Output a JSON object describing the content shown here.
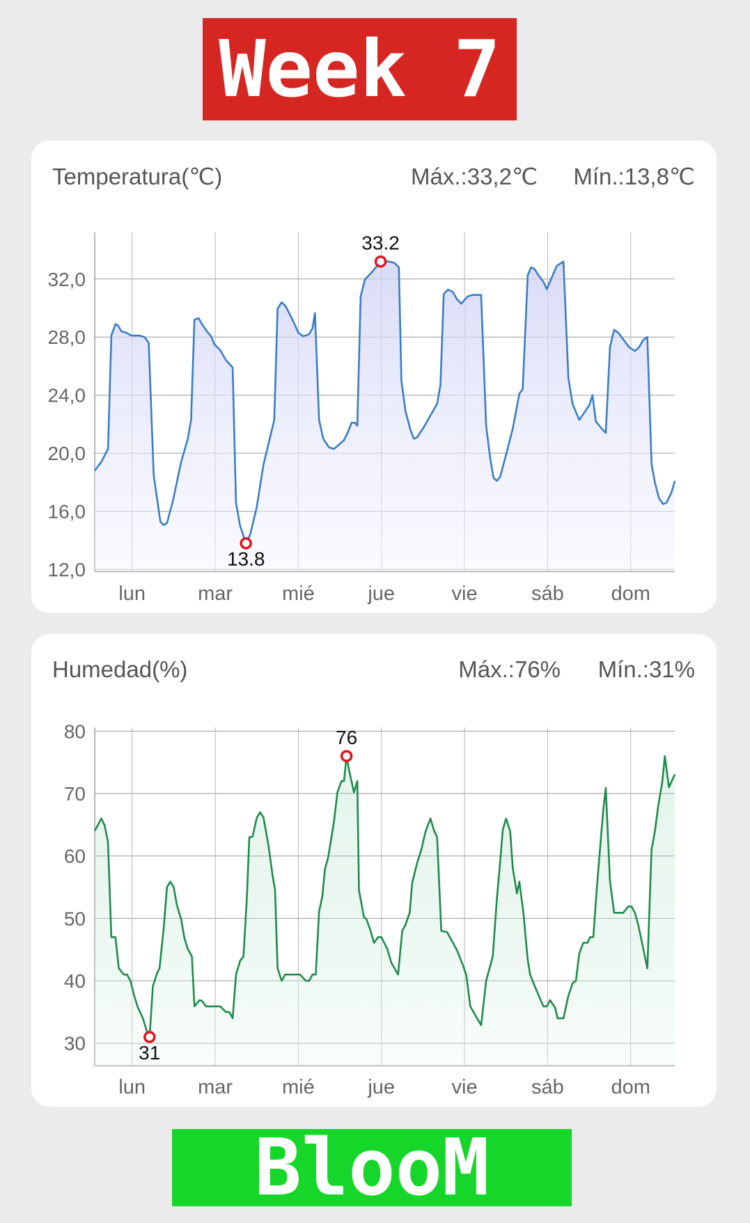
{
  "header": {
    "title": "Week 7"
  },
  "footer": {
    "brand": "BlooM"
  },
  "temperature": {
    "title": "Temperatura(℃)",
    "max_label": "Máx.:33,2℃",
    "min_label": "Mín.:13,8℃"
  },
  "humidity": {
    "title": "Humedad(%)",
    "max_label": "Máx.:76%",
    "min_label": "Mín.:31%"
  },
  "colors": {
    "header_bg": "#d62621",
    "footer_bg": "#16d62a",
    "temp_line": "#3a7dc4",
    "hum_line": "#1f8a4d",
    "marker": "#e0141c"
  },
  "chart_data": [
    {
      "type": "area",
      "title": "Temperatura(℃)",
      "xlabel": "",
      "ylabel": "",
      "x_unit": "days",
      "xlim": [
        -0.45,
        6.53
      ],
      "ylim": [
        11.86,
        35.2
      ],
      "yticks": [
        12,
        16,
        20,
        24,
        28,
        32
      ],
      "ytick_labels": [
        "12,0",
        "16,0",
        "20,0",
        "24,0",
        "28,0",
        "32,0"
      ],
      "xticks": [
        0,
        1,
        2,
        3,
        4,
        5,
        6
      ],
      "xtick_labels": [
        "lun",
        "mar",
        "mié",
        "jue",
        "vie",
        "sáb",
        "dom"
      ],
      "grid": true,
      "annotations": [
        {
          "x": 2.99,
          "y": 33.2,
          "label": "33.2",
          "kind": "max"
        },
        {
          "x": 1.37,
          "y": 13.8,
          "label": "13.8",
          "kind": "min"
        }
      ],
      "x": [
        -0.45,
        -0.37,
        -0.29,
        -0.25,
        -0.2,
        -0.17,
        -0.13,
        -0.07,
        -0.01,
        0.09,
        0.15,
        0.2,
        0.26,
        0.3,
        0.34,
        0.38,
        0.42,
        0.49,
        0.59,
        0.67,
        0.71,
        0.75,
        0.8,
        0.84,
        0.9,
        0.95,
        0.99,
        1.06,
        1.13,
        1.21,
        1.25,
        1.3,
        1.37,
        1.42,
        1.5,
        1.58,
        1.66,
        1.71,
        1.75,
        1.8,
        1.85,
        1.93,
        2.0,
        2.06,
        2.13,
        2.17,
        2.2,
        2.25,
        2.3,
        2.37,
        2.43,
        2.49,
        2.55,
        2.6,
        2.64,
        2.68,
        2.71,
        2.75,
        2.8,
        2.89,
        2.99,
        3.09,
        3.16,
        3.21,
        3.24,
        3.29,
        3.35,
        3.39,
        3.43,
        3.51,
        3.59,
        3.67,
        3.71,
        3.75,
        3.8,
        3.86,
        3.91,
        3.96,
        4.04,
        4.1,
        4.2,
        4.26,
        4.31,
        4.35,
        4.39,
        4.43,
        4.5,
        4.58,
        4.66,
        4.7,
        4.76,
        4.8,
        4.84,
        4.89,
        4.95,
        4.99,
        5.06,
        5.11,
        5.19,
        5.25,
        5.3,
        5.38,
        5.43,
        5.5,
        5.54,
        5.58,
        5.65,
        5.7,
        5.75,
        5.8,
        5.85,
        5.91,
        5.98,
        6.05,
        6.1,
        6.15,
        6.2,
        6.25,
        6.29,
        6.34,
        6.39,
        6.43,
        6.49,
        6.53
      ],
      "y": [
        18.8,
        19.4,
        20.3,
        28.1,
        28.9,
        28.8,
        28.4,
        28.3,
        28.1,
        28.1,
        28.0,
        27.6,
        18.5,
        16.9,
        15.3,
        15.05,
        15.2,
        16.7,
        19.4,
        21.0,
        22.3,
        29.2,
        29.3,
        28.9,
        28.4,
        28.05,
        27.5,
        27.1,
        26.4,
        25.9,
        16.6,
        15.0,
        13.8,
        14.4,
        16.3,
        19.2,
        21.1,
        22.3,
        29.96,
        30.4,
        30.1,
        29.2,
        28.3,
        28.05,
        28.2,
        28.6,
        29.65,
        22.3,
        21.0,
        20.4,
        20.3,
        20.6,
        20.9,
        21.5,
        22.1,
        22.1,
        21.9,
        30.8,
        31.95,
        32.5,
        33.2,
        33.2,
        33.1,
        32.8,
        25.0,
        22.9,
        21.6,
        21.0,
        21.1,
        21.8,
        22.6,
        23.4,
        24.7,
        30.96,
        31.27,
        31.1,
        30.6,
        30.3,
        30.8,
        30.9,
        30.9,
        21.9,
        19.6,
        18.3,
        18.1,
        18.4,
        19.9,
        21.7,
        24.1,
        24.4,
        32.25,
        32.8,
        32.7,
        32.25,
        31.8,
        31.3,
        32.25,
        32.9,
        33.2,
        25.2,
        23.4,
        22.3,
        22.7,
        23.3,
        24.0,
        22.2,
        21.7,
        21.4,
        27.3,
        28.5,
        28.3,
        27.85,
        27.3,
        27.05,
        27.3,
        27.8,
        28.0,
        19.3,
        18.0,
        16.9,
        16.5,
        16.6,
        17.3,
        18.1
      ]
    },
    {
      "type": "area",
      "title": "Humedad(%)",
      "xlabel": "",
      "ylabel": "",
      "x_unit": "days",
      "xlim": [
        -0.45,
        6.53
      ],
      "ylim": [
        26.4,
        80.6
      ],
      "yticks": [
        30,
        40,
        50,
        60,
        70,
        80
      ],
      "ytick_labels": [
        "30",
        "40",
        "50",
        "60",
        "70",
        "80"
      ],
      "xticks": [
        0,
        1,
        2,
        3,
        4,
        5,
        6
      ],
      "xtick_labels": [
        "lun",
        "mar",
        "mié",
        "jue",
        "vie",
        "sáb",
        "dom"
      ],
      "grid": true,
      "annotations": [
        {
          "x": 2.58,
          "y": 76,
          "label": "76",
          "kind": "max"
        },
        {
          "x": 0.21,
          "y": 31,
          "label": "31",
          "kind": "min"
        }
      ],
      "x": [
        -0.45,
        -0.37,
        -0.33,
        -0.29,
        -0.25,
        -0.2,
        -0.16,
        -0.1,
        -0.06,
        -0.02,
        0.03,
        0.07,
        0.13,
        0.18,
        0.21,
        0.25,
        0.3,
        0.33,
        0.38,
        0.42,
        0.46,
        0.5,
        0.54,
        0.59,
        0.63,
        0.67,
        0.72,
        0.75,
        0.81,
        0.84,
        0.89,
        1.06,
        1.13,
        1.17,
        1.21,
        1.25,
        1.3,
        1.34,
        1.38,
        1.41,
        1.45,
        1.5,
        1.54,
        1.58,
        1.64,
        1.69,
        1.72,
        1.75,
        1.8,
        1.84,
        2.02,
        2.09,
        2.13,
        2.17,
        2.21,
        2.25,
        2.29,
        2.32,
        2.36,
        2.43,
        2.47,
        2.52,
        2.55,
        2.58,
        2.61,
        2.67,
        2.71,
        2.73,
        2.79,
        2.82,
        2.87,
        2.91,
        2.96,
        3.0,
        3.07,
        3.12,
        3.2,
        3.25,
        3.29,
        3.34,
        3.37,
        3.43,
        3.48,
        3.53,
        3.59,
        3.63,
        3.67,
        3.72,
        3.79,
        3.84,
        3.91,
        3.98,
        4.02,
        4.07,
        4.15,
        4.2,
        4.26,
        4.34,
        4.39,
        4.43,
        4.46,
        4.5,
        4.55,
        4.58,
        4.63,
        4.66,
        4.71,
        4.76,
        4.79,
        4.84,
        4.91,
        4.95,
        4.99,
        5.03,
        5.09,
        5.12,
        5.19,
        5.25,
        5.3,
        5.34,
        5.38,
        5.43,
        5.48,
        5.51,
        5.55,
        5.59,
        5.64,
        5.67,
        5.7,
        5.75,
        5.8,
        5.91,
        5.97,
        6.01,
        6.05,
        6.09,
        6.14,
        6.2,
        6.25,
        6.29,
        6.33,
        6.38,
        6.41,
        6.46,
        6.53
      ],
      "y": [
        64,
        66,
        64.9,
        62.2,
        47,
        47,
        42,
        41,
        41,
        40,
        37.4,
        35.7,
        34,
        31.8,
        31,
        39.1,
        41.2,
        42,
        48.5,
        55,
        55.9,
        55,
        52.1,
        49.9,
        46.8,
        45.1,
        43.9,
        35.9,
        36.9,
        36.8,
        35.9,
        35.9,
        35,
        35,
        34,
        41,
        43.2,
        43.9,
        53.1,
        63,
        63.1,
        66.1,
        67,
        66.2,
        61.8,
        56.9,
        54.5,
        42,
        40,
        41,
        41,
        40,
        40,
        41,
        41,
        51.1,
        53.6,
        57.9,
        59.8,
        65.6,
        70.2,
        72,
        72,
        76,
        73.8,
        70.2,
        72,
        54.5,
        50.2,
        49.9,
        48,
        46.1,
        47,
        47,
        45.1,
        42.9,
        41,
        48,
        49,
        50.9,
        55.7,
        58.9,
        61,
        63.9,
        66,
        64.2,
        63,
        48,
        47.8,
        46.6,
        44.9,
        42.5,
        41,
        35.9,
        34,
        32.9,
        40,
        43.9,
        53.3,
        59.3,
        64.2,
        66,
        63.9,
        58.1,
        54,
        55.9,
        50.7,
        43.4,
        41,
        39.3,
        37.1,
        35.9,
        35.9,
        36.9,
        35.7,
        34,
        34,
        37.6,
        39.6,
        40,
        44.4,
        46.1,
        46.1,
        47,
        47,
        54.5,
        62.7,
        67.5,
        70.9,
        56,
        50.9,
        50.9,
        51.9,
        51.9,
        50.9,
        49,
        45.8,
        42,
        61,
        63.9,
        68,
        71.9,
        76,
        71,
        73.1
      ]
    }
  ]
}
